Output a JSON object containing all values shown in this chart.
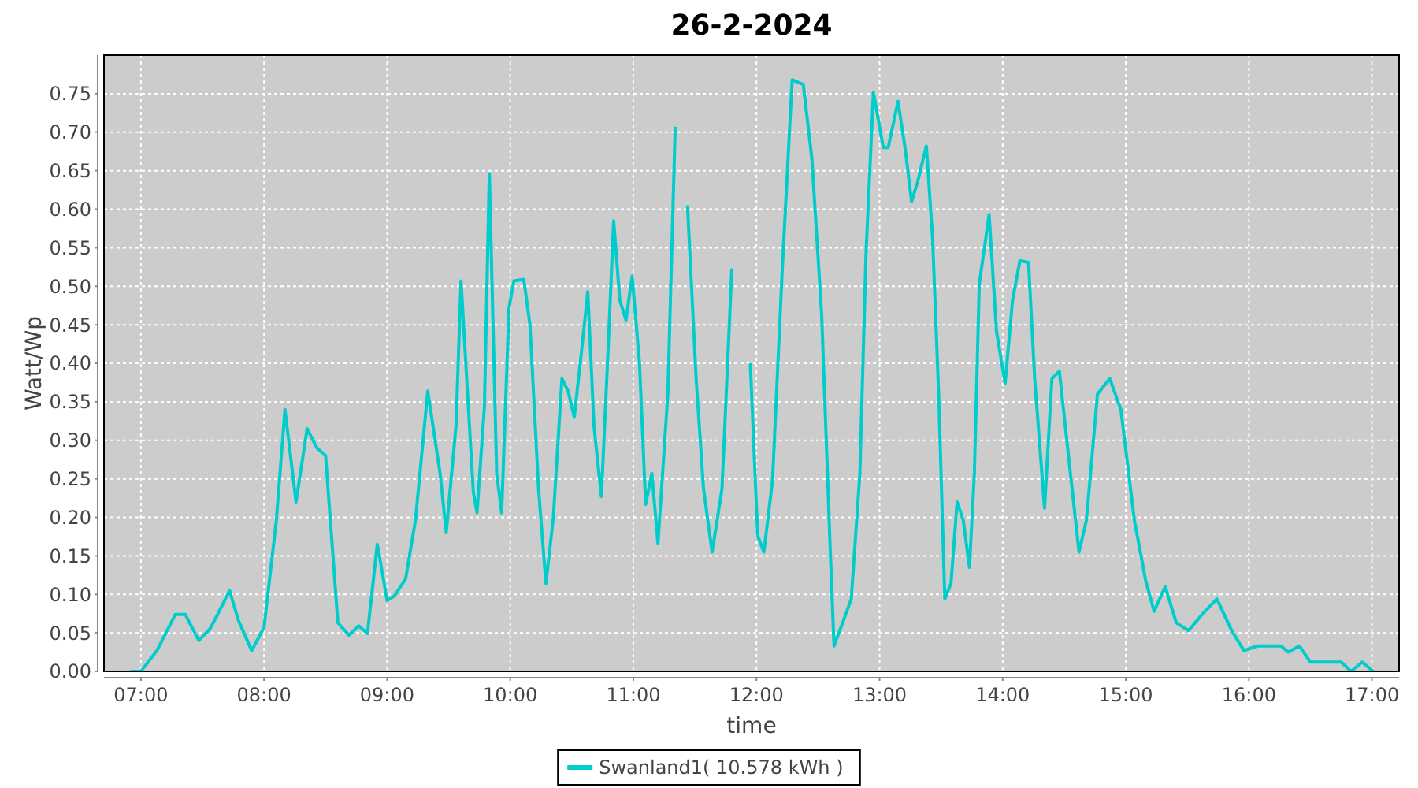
{
  "chart_data": {
    "type": "line",
    "title": "26-2-2024",
    "xlabel": "time",
    "ylabel": "Watt/Wp",
    "xlim": [
      6.7,
      17.22
    ],
    "ylim": [
      0,
      0.8
    ],
    "xticks": [
      {
        "value": 7,
        "label": "07:00"
      },
      {
        "value": 8,
        "label": "08:00"
      },
      {
        "value": 9,
        "label": "09:00"
      },
      {
        "value": 10,
        "label": "10:00"
      },
      {
        "value": 11,
        "label": "11:00"
      },
      {
        "value": 12,
        "label": "12:00"
      },
      {
        "value": 13,
        "label": "13:00"
      },
      {
        "value": 14,
        "label": "14:00"
      },
      {
        "value": 15,
        "label": "15:00"
      },
      {
        "value": 16,
        "label": "16:00"
      },
      {
        "value": 17,
        "label": "17:00"
      }
    ],
    "yticks": [
      {
        "value": 0,
        "label": "0.00"
      },
      {
        "value": 0.05,
        "label": "0.05"
      },
      {
        "value": 0.1,
        "label": "0.10"
      },
      {
        "value": 0.15,
        "label": "0.15"
      },
      {
        "value": 0.2,
        "label": "0.20"
      },
      {
        "value": 0.25,
        "label": "0.25"
      },
      {
        "value": 0.3,
        "label": "0.30"
      },
      {
        "value": 0.35,
        "label": "0.35"
      },
      {
        "value": 0.4,
        "label": "0.40"
      },
      {
        "value": 0.45,
        "label": "0.45"
      },
      {
        "value": 0.5,
        "label": "0.50"
      },
      {
        "value": 0.55,
        "label": "0.55"
      },
      {
        "value": 0.6,
        "label": "0.60"
      },
      {
        "value": 0.65,
        "label": "0.65"
      },
      {
        "value": 0.7,
        "label": "0.70"
      },
      {
        "value": 0.75,
        "label": "0.75"
      }
    ],
    "grid": true,
    "legend": "bottom",
    "marker": "none",
    "line_style": "solid",
    "series": [
      {
        "name": "Swanland1( 10.578 kWh )",
        "color": "#00cccc",
        "x": [
          6.91,
          7.0,
          7.13,
          7.28,
          7.36,
          7.47,
          7.56,
          7.63,
          7.72,
          7.79,
          7.9,
          8.0,
          8.1,
          8.17,
          8.26,
          8.35,
          8.43,
          8.5,
          8.6,
          8.69,
          8.77,
          8.84,
          8.92,
          9.0,
          9.06,
          9.15,
          9.23,
          9.33,
          9.43,
          9.48,
          9.56,
          9.6,
          9.7,
          9.73,
          9.79,
          9.83,
          9.89,
          9.93,
          9.99,
          10.03,
          10.11,
          10.16,
          10.23,
          10.29,
          10.35,
          10.42,
          10.47,
          10.52,
          10.58,
          10.63,
          10.68,
          10.74,
          10.79,
          10.84,
          10.89,
          10.94,
          10.99,
          11.05,
          11.1,
          11.15,
          11.2,
          11.28,
          11.34,
          11.38,
          11.44,
          11.51,
          11.57,
          11.64,
          11.72,
          11.8,
          11.85,
          11.9,
          11.95,
          12.01,
          12.06,
          12.13,
          12.21,
          12.29,
          12.38,
          12.45,
          12.53,
          12.6,
          12.63,
          12.7,
          12.77,
          12.84,
          12.89,
          12.95,
          13.03,
          13.07,
          13.15,
          13.21,
          13.26,
          13.31,
          13.38,
          13.43,
          13.48,
          13.53,
          13.58,
          13.63,
          13.68,
          13.73,
          13.77,
          13.81,
          13.89,
          13.95,
          14.02,
          14.08,
          14.14,
          14.21,
          14.26,
          14.34,
          14.4,
          14.46,
          14.55,
          14.62,
          14.68,
          14.77,
          14.87,
          14.96,
          15.07,
          15.16,
          15.23,
          15.32,
          15.41,
          15.51,
          15.62,
          15.74,
          15.86,
          15.96,
          16.07,
          16.15,
          16.26,
          16.32,
          16.41,
          16.5,
          16.6,
          16.75,
          16.83,
          16.92,
          17.01
        ],
        "values": [
          0,
          0,
          0.027,
          0.074,
          0.074,
          0.04,
          0.055,
          0.076,
          0.105,
          0.067,
          0.027,
          0.057,
          0.196,
          0.34,
          0.22,
          0.315,
          0.29,
          0.28,
          0.063,
          0.047,
          0.059,
          0.049,
          0.165,
          0.092,
          0.098,
          0.12,
          0.196,
          0.364,
          0.257,
          0.18,
          0.32,
          0.507,
          0.233,
          0.206,
          0.343,
          0.646,
          0.257,
          0.206,
          0.472,
          0.507,
          0.509,
          0.45,
          0.237,
          0.114,
          0.2,
          0.38,
          0.364,
          0.33,
          0.417,
          0.493,
          0.319,
          0.227,
          0.4,
          0.585,
          0.482,
          0.456,
          0.513,
          0.4,
          0.217,
          0.257,
          0.166,
          0.36,
          0.707,
          null,
          0.605,
          0.38,
          0.237,
          0.155,
          0.237,
          0.523,
          null,
          null,
          0.4,
          0.176,
          0.155,
          0.247,
          0.523,
          0.768,
          0.762,
          0.666,
          0.462,
          0.155,
          0.033,
          0.063,
          0.094,
          0.257,
          0.543,
          0.752,
          0.68,
          0.68,
          0.74,
          0.676,
          0.61,
          0.636,
          0.682,
          0.564,
          0.36,
          0.094,
          0.114,
          0.22,
          0.196,
          0.135,
          0.257,
          0.503,
          0.593,
          0.441,
          0.374,
          0.482,
          0.533,
          0.531,
          0.38,
          0.212,
          0.38,
          0.39,
          0.257,
          0.155,
          0.196,
          0.36,
          0.38,
          0.34,
          0.196,
          0.119,
          0.078,
          0.11,
          0.063,
          0.053,
          0.074,
          0.094,
          0.053,
          0.027,
          0.033,
          0.033,
          0.033,
          0.025,
          0.033,
          0.012,
          0.012,
          0.012,
          0,
          0.012,
          0
        ]
      }
    ]
  }
}
